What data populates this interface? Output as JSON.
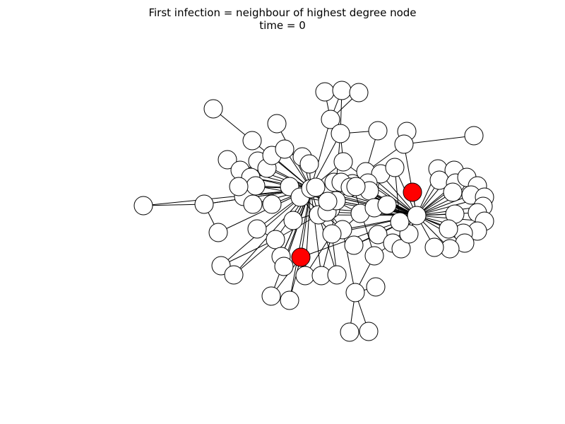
{
  "figure": {
    "title": "First infection = neighbour of highest degree node",
    "subtitle": "time = 0"
  },
  "graph": {
    "node_count": 101,
    "colors": {
      "infected": "#ff0000",
      "susceptible": "#ffffff",
      "edge": "#000000",
      "outline": "#000000"
    },
    "infected_nodes": [
      "N33"
    ]
  }
}
